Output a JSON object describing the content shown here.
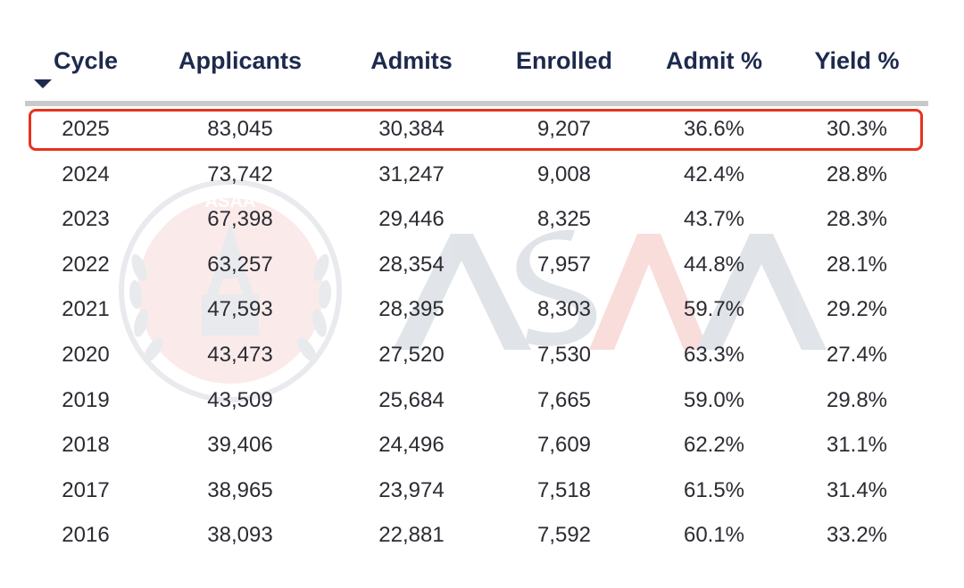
{
  "watermark": {
    "text": "ASAA",
    "seal_text": "ASAA",
    "colors": {
      "grey": "#c8cdd6",
      "red": "#f3b9b4"
    }
  },
  "table": {
    "sorted_column": "Cycle",
    "sort_direction": "descending",
    "highlight_color": "#e8321e",
    "header_color": "#1d2a4d",
    "highlighted_row": "2025"
  },
  "chart_data": {
    "type": "table",
    "columns": [
      "Cycle",
      "Applicants",
      "Admits",
      "Enrolled",
      "Admit %",
      "Yield %"
    ],
    "rows": [
      [
        "2025",
        "83,045",
        "30,384",
        "9,207",
        "36.6%",
        "30.3%"
      ],
      [
        "2024",
        "73,742",
        "31,247",
        "9,008",
        "42.4%",
        "28.8%"
      ],
      [
        "2023",
        "67,398",
        "29,446",
        "8,325",
        "43.7%",
        "28.3%"
      ],
      [
        "2022",
        "63,257",
        "28,354",
        "7,957",
        "44.8%",
        "28.1%"
      ],
      [
        "2021",
        "47,593",
        "28,395",
        "8,303",
        "59.7%",
        "29.2%"
      ],
      [
        "2020",
        "43,473",
        "27,520",
        "7,530",
        "63.3%",
        "27.4%"
      ],
      [
        "2019",
        "43,509",
        "25,684",
        "7,665",
        "59.0%",
        "29.8%"
      ],
      [
        "2018",
        "39,406",
        "24,496",
        "7,609",
        "62.2%",
        "31.1%"
      ],
      [
        "2017",
        "38,965",
        "23,974",
        "7,518",
        "61.5%",
        "31.4%"
      ],
      [
        "2016",
        "38,093",
        "22,881",
        "7,592",
        "60.1%",
        "33.2%"
      ]
    ]
  }
}
